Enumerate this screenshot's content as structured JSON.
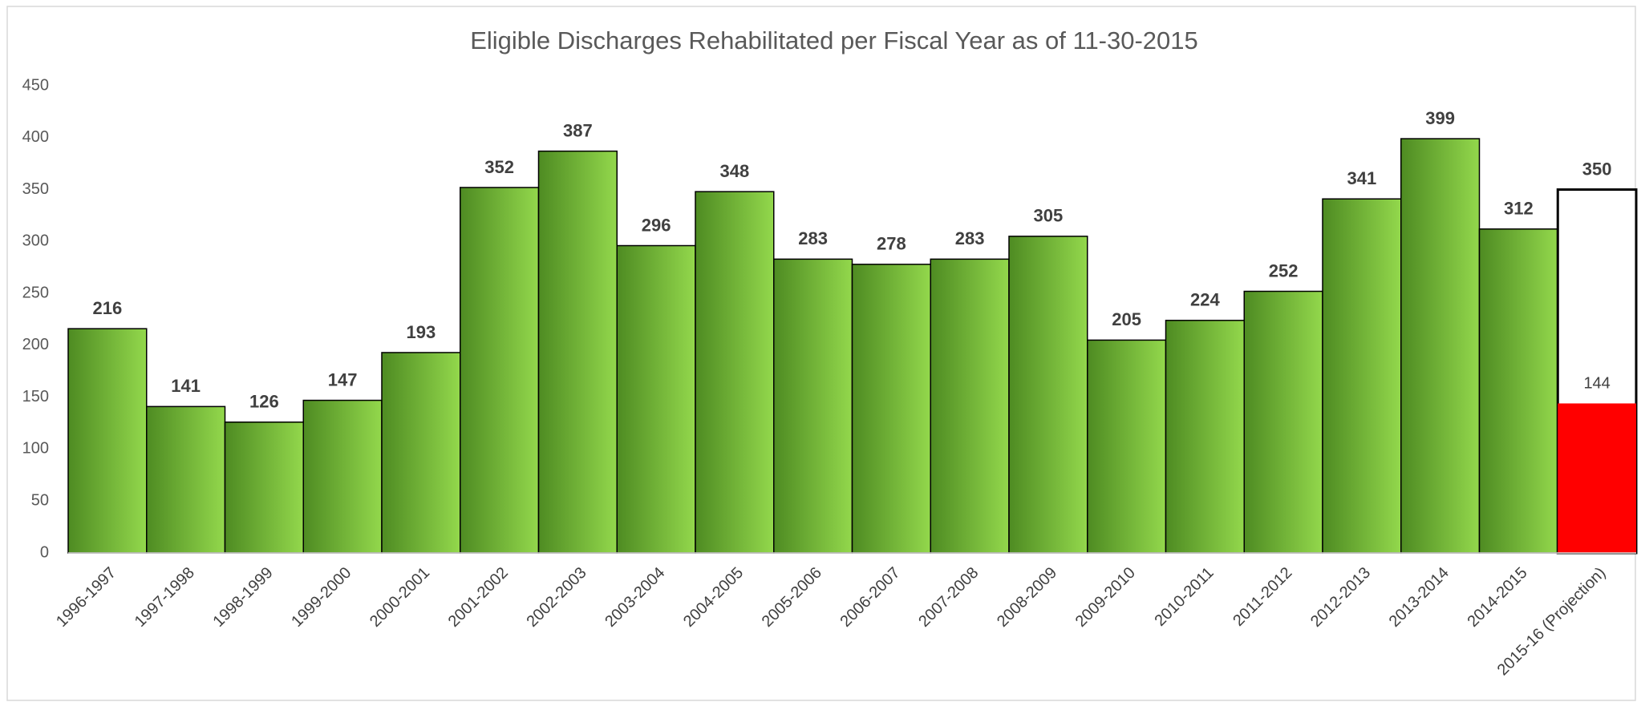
{
  "chart_data": {
    "type": "bar",
    "title": "Eligible Discharges Rehabilitated per Fiscal Year as of  11-30-2015",
    "categories": [
      "1996-1997",
      "1997-1998",
      "1998-1999",
      "1999-2000",
      "2000-2001",
      "2001-2002",
      "2002-2003",
      "2003-2004",
      "2004-2005",
      "2005-2006",
      "2006-2007",
      "2007-2008",
      "2008-2009",
      "2009-2010",
      "2010-2011",
      "2011-2012",
      "2012-2013",
      "2013-2014",
      "2014-2015",
      "2015-16 (Projection)"
    ],
    "series": [
      {
        "values": [
          216,
          141,
          126,
          147,
          193,
          352,
          387,
          296,
          348,
          283,
          278,
          283,
          305,
          205,
          224,
          252,
          341,
          399,
          312,
          350
        ],
        "colors": [
          "#7cc142",
          "#7cc142",
          "#7cc142",
          "#7cc142",
          "#7cc142",
          "#7cc142",
          "#7cc142",
          "#7cc142",
          "#7cc142",
          "#7cc142",
          "#7cc142",
          "#7cc142",
          "#7cc142",
          "#7cc142",
          "#7cc142",
          "#7cc142",
          "#7cc142",
          "#7cc142",
          "#7cc142",
          "#ffffff"
        ]
      },
      {
        "values": [
          null,
          null,
          null,
          null,
          null,
          null,
          null,
          null,
          null,
          null,
          null,
          null,
          null,
          null,
          null,
          null,
          null,
          null,
          null,
          144
        ],
        "color": "#ff0000"
      }
    ],
    "ylim": [
      0,
      450
    ],
    "yticks": [
      0,
      50,
      100,
      150,
      200,
      250,
      300,
      350,
      400,
      450
    ],
    "grid": false
  }
}
